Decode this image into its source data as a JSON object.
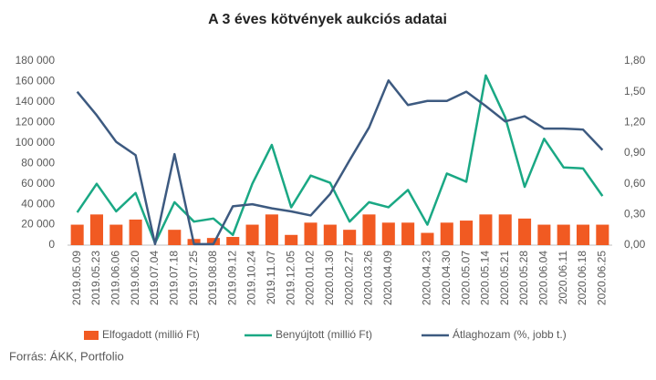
{
  "chart_data": {
    "type": "bar-line",
    "title": "A 3 éves kötvények aukciós adatai",
    "source": "Forrás: ÁKK, Portfolio",
    "categories": [
      "2019.05.09",
      "2019.05.23",
      "2019.06.06",
      "2019.06.20",
      "2019.07.04",
      "2019.07.18",
      "2019.07.25",
      "2019.08.08",
      "2019.09.12",
      "2019.10.24",
      "2019.11.07",
      "2019.12.05",
      "2020.01.02",
      "2020.01.30",
      "2020.02.27",
      "2020.03.26",
      "2020.04.09",
      null,
      "2020.04.23",
      "2020.04.30",
      "2020.05.07",
      "2020.05.14",
      "2020.05.21",
      "2020.05.28",
      "2020.06.04",
      "2020.06.11",
      "2020.06.18",
      "2020.06.25"
    ],
    "series": [
      {
        "name": "Elfogadott (millió Ft)",
        "type": "bar",
        "color": "#f15a22",
        "values": [
          20000,
          30000,
          20000,
          25000,
          0,
          15000,
          6000,
          7000,
          8000,
          20000,
          30000,
          10000,
          22000,
          20000,
          15000,
          30000,
          22000,
          22000,
          12000,
          22000,
          24000,
          30000,
          30000,
          26000,
          20000,
          20000,
          20000,
          20000
        ]
      },
      {
        "name": "Benyújtott (millió Ft)",
        "type": "line",
        "color": "#1aa884",
        "values": [
          32000,
          60000,
          33000,
          51000,
          2000,
          42000,
          23000,
          26000,
          10000,
          60000,
          98000,
          37000,
          68000,
          61000,
          23000,
          42000,
          37000,
          54000,
          20000,
          70000,
          62000,
          166000,
          125000,
          57000,
          104000,
          76000,
          75000,
          48000
        ]
      },
      {
        "name": "Átlaghozam (%, jobb t.)",
        "type": "line",
        "axis": "y2",
        "color": "#3d5a80",
        "values": [
          1.5,
          1.27,
          1.01,
          0.88,
          0.01,
          0.89,
          0.01,
          0.01,
          0.38,
          0.4,
          0.36,
          0.33,
          0.29,
          0.5,
          0.83,
          1.15,
          1.61,
          1.37,
          1.41,
          1.41,
          1.5,
          1.36,
          1.21,
          1.26,
          1.14,
          1.14,
          1.13,
          0.93
        ]
      }
    ],
    "ylim": [
      0,
      180000
    ],
    "yticks": [
      0,
      {
        "value": 20000,
        "label": "20 000"
      },
      {
        "value": 40000,
        "label": "40 000"
      },
      {
        "value": 60000,
        "label": "60 000"
      },
      {
        "value": 80000,
        "label": "80 000"
      },
      {
        "value": 100000,
        "label": "100 000"
      },
      {
        "value": 120000,
        "label": "120 000"
      },
      {
        "value": 140000,
        "label": "140 000"
      },
      {
        "value": 160000,
        "label": "160 000"
      },
      {
        "value": 180000,
        "label": "180 000"
      }
    ],
    "y2lim": [
      0,
      1.8
    ],
    "y2ticks": [
      {
        "value": 0,
        "label": "0,00"
      },
      {
        "value": 0.3,
        "label": "0,30"
      },
      {
        "value": 0.6,
        "label": "0,60"
      },
      {
        "value": 0.9,
        "label": "0,90"
      },
      {
        "value": 1.2,
        "label": "1,20"
      },
      {
        "value": 1.5,
        "label": "1,50"
      },
      {
        "value": 1.8,
        "label": "1,80"
      }
    ],
    "grid": false
  }
}
